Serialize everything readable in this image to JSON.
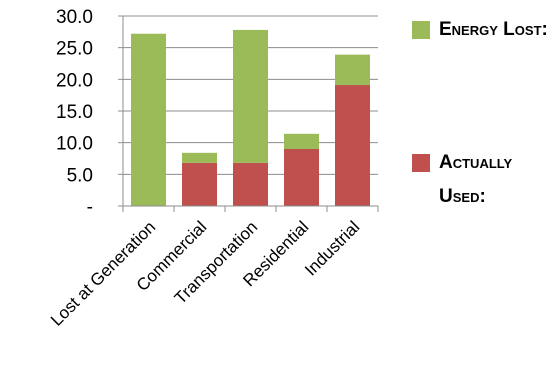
{
  "chart_data": {
    "type": "bar",
    "stacked": true,
    "categories": [
      "Lost at Generation",
      "Commercial",
      "Transportation",
      "Residential",
      "Industrial"
    ],
    "series": [
      {
        "name": "Actually Used:",
        "color": "#c0504d",
        "values": [
          0,
          6.8,
          6.8,
          9.0,
          19.1
        ]
      },
      {
        "name": "Energy Lost:",
        "color": "#9bbb59",
        "values": [
          27.2,
          1.6,
          21.0,
          2.4,
          4.8
        ]
      }
    ],
    "ylim": [
      0,
      30
    ],
    "yticks": [
      0,
      5,
      10,
      15,
      20,
      25,
      30
    ],
    "ytick_labels": [
      "-",
      "5.0",
      "10.0",
      "15.0",
      "20.0",
      "25.0",
      "30.0"
    ],
    "grid": true,
    "legend_position": "right",
    "title": "",
    "xlabel": "",
    "ylabel": ""
  },
  "legend": {
    "energy_lost": "Energy Lost:",
    "actually_used": "Actually Used:"
  }
}
